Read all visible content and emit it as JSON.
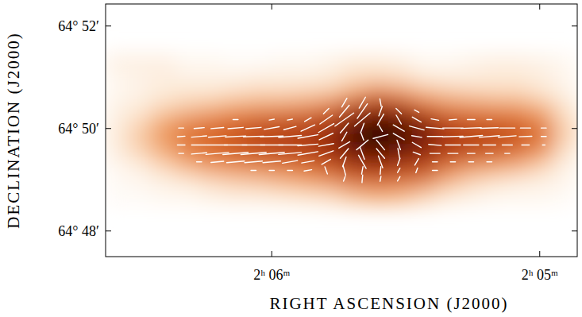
{
  "chart_data": {
    "type": "heatmap",
    "xlabel": "RIGHT ASCENSION (J2000)",
    "ylabel": "DECLINATION (J2000)",
    "xlim": [
      126.62,
      124.86
    ],
    "ylim": [
      3887.5,
      3892.43
    ],
    "xticks": [
      {
        "value": 126,
        "label": "2ʰ 06ᵐ"
      },
      {
        "value": 125,
        "label": "2ʰ 05ᵐ"
      }
    ],
    "yticks": [
      {
        "value": 3888,
        "label": "64° 48′"
      },
      {
        "value": 3890,
        "label": "64° 50′"
      },
      {
        "value": 3892,
        "label": "64° 52′"
      }
    ],
    "x": [
      126.579,
      126.491,
      126.403,
      126.315,
      126.226,
      126.138,
      126.05,
      125.962,
      125.874,
      125.785,
      125.697,
      125.609,
      125.521,
      125.432,
      125.344,
      125.256,
      125.168,
      125.079,
      124.991,
      124.903
    ],
    "y": [
      3891.294,
      3891.0,
      3890.706,
      3890.413,
      3890.119,
      3889.826,
      3889.532,
      3889.239,
      3888.945,
      3888.651
    ],
    "zlim": [
      0,
      10
    ],
    "z": [
      [
        1,
        1,
        1,
        0.5,
        0.5,
        0.3,
        0.3,
        0.5,
        0.5,
        0.8,
        1.2,
        1.2,
        1,
        0.5,
        0.5,
        0.8,
        1,
        1,
        0.8,
        0.5
      ],
      [
        0.5,
        0.8,
        1,
        0.8,
        0.8,
        0.8,
        1,
        1,
        1,
        1.2,
        1.8,
        2,
        1.8,
        1.2,
        1,
        1,
        1.2,
        1.2,
        1,
        0.5
      ],
      [
        0.5,
        0.8,
        1.2,
        1.5,
        1.5,
        1.8,
        2,
        2,
        2.2,
        2.5,
        3.5,
        4.5,
        4,
        3,
        2.5,
        2.2,
        2,
        2,
        1.5,
        0.8
      ],
      [
        0.8,
        1.2,
        2,
        2.5,
        3,
        3.5,
        3.8,
        4,
        4.2,
        5,
        6.5,
        7.5,
        7,
        5.5,
        4.5,
        4.2,
        4,
        3.8,
        3,
        1.5
      ],
      [
        1,
        2,
        3.5,
        4.5,
        5,
        5.5,
        6,
        6.2,
        6.5,
        7,
        8.5,
        9.5,
        9,
        8,
        6.5,
        6,
        5.8,
        5.5,
        4.5,
        2
      ],
      [
        1.2,
        2.5,
        4,
        5,
        5.5,
        6,
        6.5,
        6.8,
        7,
        7.8,
        9.5,
        10,
        9.5,
        8.5,
        7.2,
        6.8,
        6.5,
        6,
        5,
        2.2
      ],
      [
        1,
        2,
        3.2,
        4.5,
        5.2,
        5.8,
        6.2,
        6.5,
        6.8,
        7.5,
        8.5,
        9,
        8.5,
        7.8,
        6.8,
        6.2,
        5.8,
        5,
        3.8,
        1.5
      ],
      [
        0.5,
        1,
        2,
        3,
        3.8,
        4.2,
        4.5,
        4.8,
        5.2,
        6,
        7,
        7.5,
        7,
        6.5,
        5,
        4,
        3.5,
        3,
        2,
        0.8
      ],
      [
        0.3,
        0.5,
        0.8,
        1.2,
        1.8,
        2.2,
        2.5,
        3,
        3.5,
        4,
        5,
        5.2,
        5,
        4.5,
        3,
        2,
        1.5,
        1,
        0.8,
        0.5
      ],
      [
        0.3,
        0.3,
        0.5,
        0.5,
        0.8,
        1,
        1,
        1.2,
        1.5,
        1.8,
        2.5,
        3,
        2.8,
        2,
        1.2,
        0.8,
        0.5,
        0.5,
        0.5,
        0.3
      ]
    ],
    "vectors": {
      "color": "#ffffff",
      "ra": [
        126.338,
        126.271,
        126.203,
        126.135,
        126.068,
        126.0,
        125.932,
        125.865,
        125.797,
        125.729,
        125.662,
        125.594,
        125.526,
        125.459,
        125.391,
        125.324,
        125.256,
        125.188,
        125.121,
        125.053,
        124.985
      ],
      "rows": [
        {
          "dec": 3890.505,
          "p": [
            null,
            null,
            null,
            null,
            null,
            null,
            null,
            null,
            null,
            4,
            5,
            3,
            null,
            null,
            null,
            null,
            null,
            null,
            null,
            null,
            null
          ],
          "angle": [
            null,
            null,
            null,
            null,
            null,
            null,
            null,
            null,
            null,
            150,
            150,
            10,
            null,
            null,
            null,
            null,
            null,
            null,
            null,
            null,
            null
          ]
        },
        {
          "dec": 3890.339,
          "p": [
            null,
            null,
            null,
            null,
            null,
            null,
            null,
            null,
            3,
            6,
            7,
            4,
            3,
            2,
            null,
            null,
            null,
            null,
            null,
            null,
            null
          ],
          "angle": [
            null,
            null,
            null,
            null,
            null,
            null,
            null,
            null,
            135,
            140,
            145,
            160,
            45,
            60,
            null,
            null,
            null,
            null,
            null,
            null,
            null
          ]
        },
        {
          "dec": 3890.174,
          "p": [
            null,
            null,
            null,
            2,
            null,
            2,
            2,
            3,
            6,
            9,
            8,
            5,
            4,
            4,
            3,
            3,
            3,
            2,
            null,
            null,
            null
          ],
          "angle": [
            null,
            null,
            null,
            90,
            null,
            100,
            100,
            120,
            125,
            125,
            130,
            150,
            30,
            60,
            80,
            95,
            90,
            90,
            null,
            null,
            null
          ]
        },
        {
          "dec": 3890.009,
          "p": [
            2,
            4,
            5,
            6,
            6,
            6,
            5,
            6,
            7,
            5,
            4,
            3,
            5,
            6,
            7,
            8,
            8,
            7,
            6,
            4,
            2
          ],
          "angle": [
            90,
            95,
            95,
            95,
            95,
            100,
            105,
            115,
            120,
            140,
            160,
            30,
            60,
            75,
            85,
            90,
            92,
            92,
            90,
            90,
            90
          ]
        },
        {
          "dec": 3889.844,
          "p": [
            3,
            6,
            7,
            8,
            8,
            9,
            9,
            8,
            6,
            4,
            3,
            6,
            5,
            4,
            6,
            8,
            9,
            8,
            7,
            5,
            2
          ],
          "angle": [
            95,
            95,
            95,
            93,
            92,
            92,
            95,
            100,
            115,
            150,
            20,
            105,
            60,
            80,
            90,
            92,
            95,
            95,
            95,
            92,
            90
          ]
        },
        {
          "dec": 3889.679,
          "p": [
            3,
            6,
            8,
            9,
            9,
            9,
            9,
            8,
            6,
            5,
            6,
            5,
            4,
            4,
            5,
            6,
            6,
            5,
            4,
            3,
            1
          ],
          "angle": [
            90,
            90,
            90,
            90,
            90,
            90,
            90,
            95,
            100,
            120,
            130,
            40,
            20,
            60,
            85,
            90,
            90,
            90,
            90,
            90,
            90
          ]
        },
        {
          "dec": 3889.514,
          "p": [
            2,
            6,
            9,
            10,
            10,
            10,
            9,
            8,
            6,
            5,
            5,
            5,
            4,
            3,
            4,
            4,
            3,
            3,
            2,
            null,
            null
          ],
          "angle": [
            90,
            95,
            95,
            95,
            95,
            95,
            95,
            100,
            110,
            140,
            20,
            40,
            10,
            70,
            90,
            90,
            90,
            90,
            90,
            null,
            null
          ]
        },
        {
          "dec": 3889.349,
          "p": [
            null,
            2,
            5,
            7,
            7,
            7,
            6,
            5,
            4,
            4,
            6,
            5,
            3,
            3,
            2,
            2,
            2,
            2,
            null,
            null,
            null
          ],
          "angle": [
            null,
            90,
            95,
            95,
            95,
            95,
            100,
            100,
            120,
            160,
            30,
            20,
            160,
            150,
            90,
            90,
            90,
            90,
            null,
            null,
            null
          ]
        },
        {
          "dec": 3889.183,
          "p": [
            null,
            null,
            null,
            null,
            2,
            2,
            2,
            3,
            3,
            4,
            3,
            3,
            2,
            2,
            2,
            null,
            null,
            null,
            null,
            null,
            null
          ],
          "angle": [
            null,
            null,
            null,
            null,
            90,
            90,
            90,
            100,
            20,
            15,
            170,
            175,
            150,
            160,
            90,
            null,
            null,
            null,
            null,
            null,
            null
          ]
        },
        {
          "dec": 3889.018,
          "p": [
            null,
            null,
            null,
            null,
            null,
            null,
            null,
            null,
            null,
            2,
            3,
            2,
            2,
            null,
            null,
            null,
            null,
            null,
            null,
            null,
            null
          ],
          "angle": [
            null,
            null,
            null,
            null,
            null,
            null,
            null,
            null,
            null,
            160,
            175,
            170,
            150,
            null,
            null,
            null,
            null,
            null,
            null,
            null,
            null
          ]
        }
      ]
    }
  }
}
